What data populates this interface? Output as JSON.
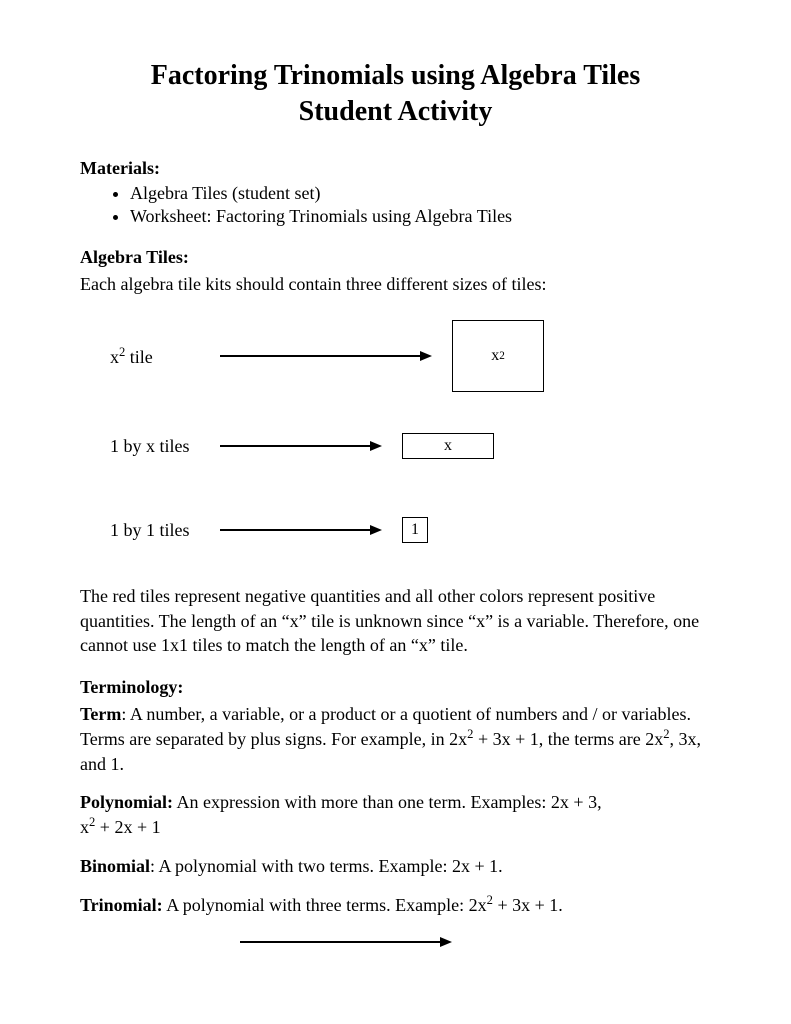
{
  "title_line1": "Factoring Trinomials using Algebra Tiles",
  "title_line2": "Student Activity",
  "materials": {
    "heading": "Materials:",
    "items": [
      "Algebra Tiles (student set)",
      "Worksheet: Factoring Trinomials using Algebra Tiles"
    ]
  },
  "algebra_tiles": {
    "heading": "Algebra Tiles:",
    "intro": "Each algebra tile kits should contain three different sizes of tiles:"
  },
  "tiles": [
    {
      "label_prefix": "x",
      "label_sup": "2",
      "label_suffix": "  tile",
      "box_text_prefix": "x",
      "box_text_sup": "2",
      "box_class": "tile-x2",
      "arrow_class": ""
    },
    {
      "label_prefix": "1 by x tiles",
      "label_sup": "",
      "label_suffix": "",
      "box_text_prefix": "x",
      "box_text_sup": "",
      "box_class": "tile-x",
      "arrow_class": "short"
    },
    {
      "label_prefix": "1 by 1 tiles",
      "label_sup": "",
      "label_suffix": "",
      "box_text_prefix": "1",
      "box_text_sup": "",
      "box_class": "tile-1",
      "arrow_class": "short"
    }
  ],
  "tiles_description": "The red tiles represent negative quantities and all other colors represent positive quantities.  The length of an “x” tile is unknown since “x” is a variable. Therefore, one cannot use 1x1 tiles to match the length of an “x” tile.",
  "terminology": {
    "heading": "Terminology:",
    "term": {
      "name": "Term",
      "sep": ": ",
      "def_before": "A number, a variable, or a product or a quotient of numbers and / or variables. Terms are separated by plus signs. For example, in 2x",
      "def_sup1": "2",
      "def_mid": " + 3x + 1, the terms are 2x",
      "def_sup2": "2",
      "def_after": ", 3x, and 1."
    },
    "polynomial": {
      "name": "Polynomial:",
      "sep": " ",
      "def_before": "An expression with more than one term. Examples: 2x + 3,",
      "line2_pre": " x",
      "line2_sup": "2",
      "line2_post": " + 2x + 1"
    },
    "binomial": {
      "name": "Binomial",
      "sep": ": ",
      "def": "A polynomial with two terms. Example: 2x + 1."
    },
    "trinomial": {
      "name": "Trinomial:",
      "sep": " ",
      "def_before": "A polynomial with three terms. Example: 2x",
      "def_sup": "2",
      "def_after": " + 3x + 1."
    }
  },
  "colors": {
    "text": "#000000",
    "background": "#ffffff",
    "border": "#000000"
  },
  "typography": {
    "family": "Times New Roman",
    "title_size_pt": 21,
    "body_size_pt": 13
  }
}
